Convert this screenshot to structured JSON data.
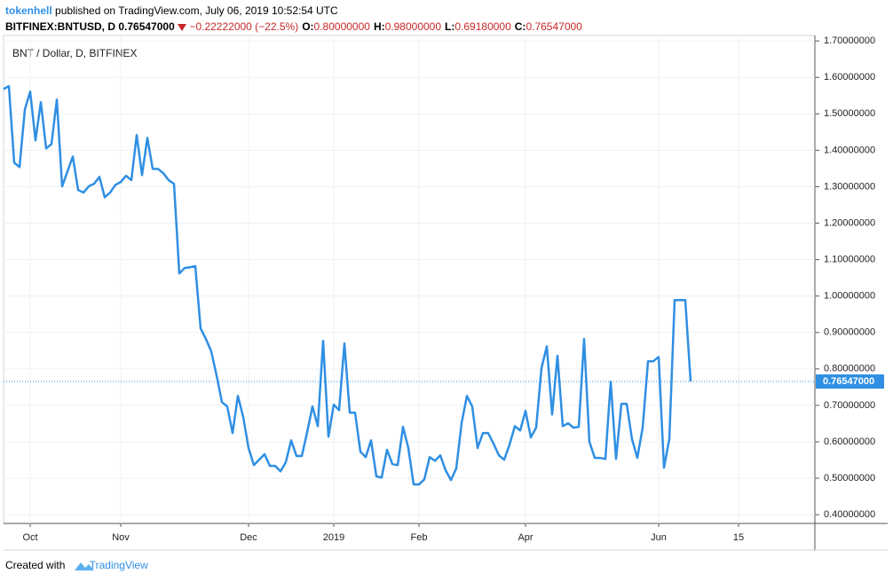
{
  "header": {
    "author": "tokenhell",
    "published": "published on TradingView.com, July 06, 2019 10:52:54 UTC",
    "symbol": "BITFINEX:BNTUSD, D",
    "price": "0.76547000",
    "change": "−0.22222000 (−22.5%)",
    "ohlc": [
      {
        "key": "O:",
        "value": "0.80000000"
      },
      {
        "key": "H:",
        "value": "0.98000000"
      },
      {
        "key": "L:",
        "value": "0.69180000"
      },
      {
        "key": "C:",
        "value": "0.76547000"
      }
    ]
  },
  "chart_data": {
    "type": "line",
    "title": "BNT / Dollar, D, BITFINEX",
    "categories": [
      null,
      null,
      null,
      null,
      null,
      "Oct",
      null,
      null,
      null,
      null,
      null,
      null,
      null,
      null,
      null,
      null,
      null,
      null,
      null,
      null,
      null,
      null,
      "Nov",
      null,
      null,
      null,
      null,
      null,
      null,
      null,
      null,
      null,
      null,
      null,
      null,
      null,
      null,
      null,
      null,
      null,
      null,
      null,
      null,
      null,
      null,
      null,
      "Dec",
      null,
      null,
      null,
      null,
      null,
      null,
      null,
      null,
      null,
      null,
      null,
      null,
      null,
      null,
      null,
      "2019",
      null,
      null,
      null,
      null,
      null,
      null,
      null,
      null,
      null,
      null,
      null,
      null,
      null,
      null,
      null,
      "Feb",
      null,
      null,
      null,
      null,
      null,
      null,
      null,
      null,
      null,
      null,
      null,
      null,
      null,
      null,
      null,
      null,
      null,
      null,
      null,
      "Apr",
      null,
      null,
      null,
      null,
      null,
      null,
      null,
      null,
      null,
      null,
      null,
      null,
      null,
      null,
      null,
      null,
      null,
      null,
      null,
      null,
      null,
      null,
      null,
      null,
      "Jun",
      null,
      null,
      null,
      null,
      null,
      null,
      null,
      null,
      null,
      null,
      null,
      null,
      null,
      null,
      "15",
      null,
      null,
      null,
      null,
      null,
      null,
      null,
      null,
      null,
      null,
      null,
      null,
      null,
      null
    ],
    "series": [
      {
        "name": "BNT / Dollar",
        "color": "#2f8fe3",
        "values": [
          1.568,
          1.576,
          1.366,
          1.354,
          1.512,
          1.561,
          1.427,
          1.532,
          1.405,
          1.417,
          1.539,
          1.301,
          1.342,
          1.383,
          1.291,
          1.284,
          1.301,
          1.308,
          1.327,
          1.271,
          1.284,
          1.305,
          1.313,
          1.33,
          1.318,
          1.442,
          1.332,
          1.434,
          1.349,
          1.349,
          1.337,
          1.318,
          1.308,
          1.062,
          1.077,
          1.079,
          1.082,
          0.911,
          0.882,
          0.848,
          0.782,
          0.709,
          0.697,
          0.624,
          0.726,
          0.668,
          0.583,
          0.536,
          0.551,
          0.566,
          0.534,
          0.534,
          0.519,
          0.544,
          0.604,
          0.561,
          0.561,
          0.626,
          0.697,
          0.643,
          0.877,
          0.614,
          0.702,
          0.687,
          0.87,
          0.68,
          0.68,
          0.573,
          0.558,
          0.604,
          0.505,
          0.502,
          0.578,
          0.539,
          0.536,
          0.641,
          0.583,
          0.483,
          0.483,
          0.497,
          0.558,
          0.548,
          0.563,
          0.522,
          0.495,
          0.527,
          0.651,
          0.726,
          0.697,
          0.583,
          0.624,
          0.624,
          0.595,
          0.563,
          0.551,
          0.592,
          0.643,
          0.631,
          0.685,
          0.612,
          0.639,
          0.802,
          0.862,
          0.675,
          0.836,
          0.643,
          0.651,
          0.639,
          0.641,
          0.882,
          0.6,
          0.556,
          0.556,
          0.553,
          0.765,
          0.553,
          0.704,
          0.704,
          0.607,
          0.556,
          0.639,
          0.821,
          0.821,
          0.833,
          0.529,
          0.607,
          0.989,
          0.989,
          0.989,
          0.76547,
          null,
          null,
          null,
          null,
          null,
          null,
          null,
          null,
          null,
          null,
          null,
          null,
          null,
          null,
          null,
          null,
          null,
          null,
          null,
          null,
          null,
          null,
          null
        ]
      }
    ],
    "price_label": {
      "value": 0.76547,
      "label": "0.76547000"
    },
    "ylim": [
      0.376,
      1.715
    ],
    "yticks": [
      {
        "value": 0.4,
        "label": "0.40000000"
      },
      {
        "value": 0.5,
        "label": "0.50000000"
      },
      {
        "value": 0.6,
        "label": "0.60000000"
      },
      {
        "value": 0.7,
        "label": "0.70000000"
      },
      {
        "value": 0.8,
        "label": "0.80000000"
      },
      {
        "value": 0.9,
        "label": "0.90000000"
      },
      {
        "value": 1.0,
        "label": "1.00000000"
      },
      {
        "value": 1.1,
        "label": "1.10000000"
      },
      {
        "value": 1.2,
        "label": "1.20000000"
      },
      {
        "value": 1.3,
        "label": "1.30000000"
      },
      {
        "value": 1.4,
        "label": "1.40000000"
      },
      {
        "value": 1.5,
        "label": "1.50000000"
      },
      {
        "value": 1.6,
        "label": "1.60000000"
      },
      {
        "value": 1.7,
        "label": "1.70000000"
      }
    ],
    "grid": true
  },
  "footer": {
    "created": "Created with",
    "brand": "TradingView"
  }
}
